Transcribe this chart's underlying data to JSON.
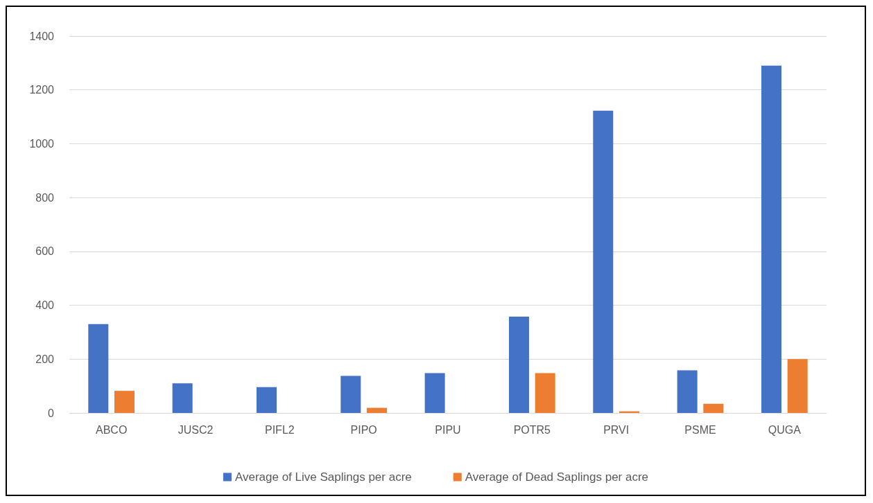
{
  "chart_data": {
    "type": "bar",
    "categories": [
      "ABCO",
      "JUSC2",
      "PIFL2",
      "PIPO",
      "PIPU",
      "POTR5",
      "PRVI",
      "PSME",
      "QUGA"
    ],
    "series": [
      {
        "name": "Average of Live Saplings per acre",
        "color": "#4472c4",
        "values": [
          330,
          110,
          96,
          138,
          148,
          358,
          1123,
          158,
          1290
        ]
      },
      {
        "name": "Average of Dead Saplings per acre",
        "color": "#ed7d31",
        "values": [
          82,
          0,
          0,
          19,
          0,
          148,
          6,
          34,
          200
        ]
      }
    ],
    "ylim": [
      0,
      1400
    ],
    "yticks": [
      0,
      200,
      400,
      600,
      800,
      1000,
      1200,
      1400
    ],
    "grid": "y",
    "legend": "bottom"
  }
}
